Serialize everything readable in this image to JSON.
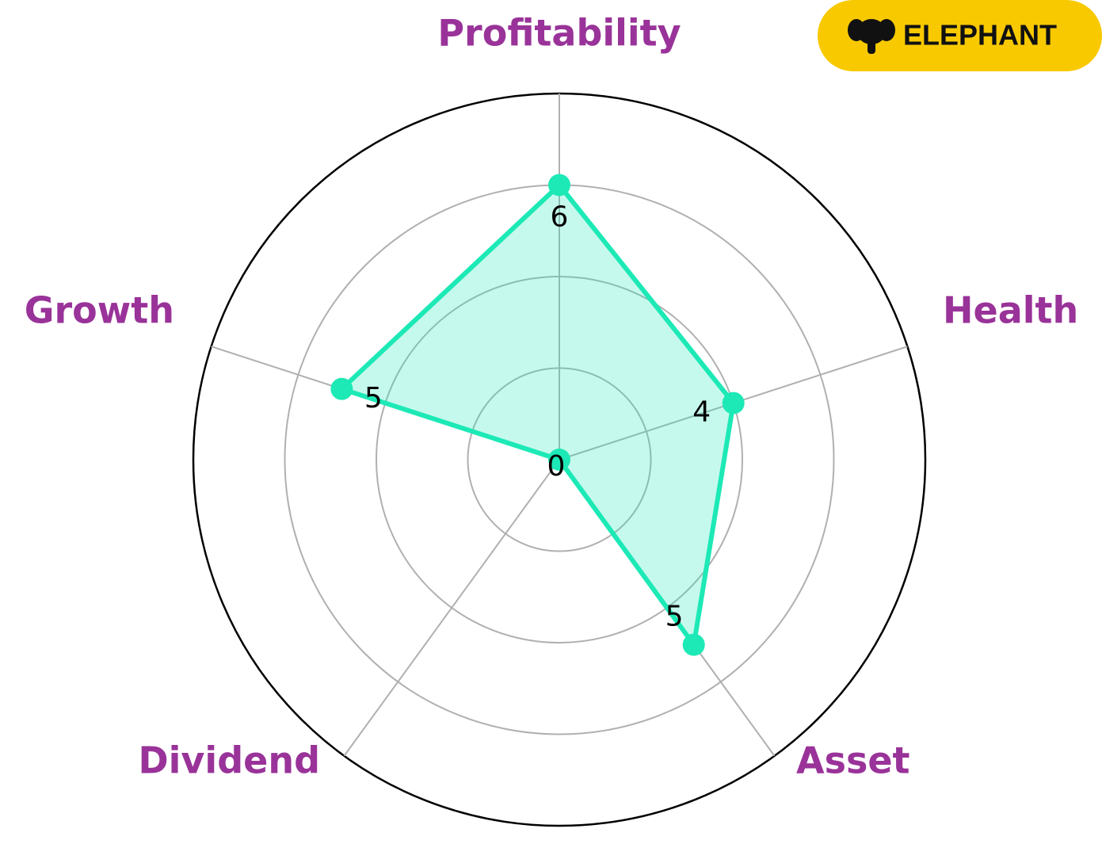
{
  "logo": "ELEPHANT",
  "chart_data": {
    "type": "radar",
    "categories": [
      "Profitability",
      "Health",
      "Asset",
      "Dividend",
      "Growth"
    ],
    "values": [
      6,
      4,
      5,
      0,
      5
    ],
    "color": "#1de9b6",
    "label_color": "#993399",
    "ylim": [
      0,
      8
    ],
    "yticks": [
      0,
      2,
      4,
      6,
      8
    ],
    "grid": true
  }
}
